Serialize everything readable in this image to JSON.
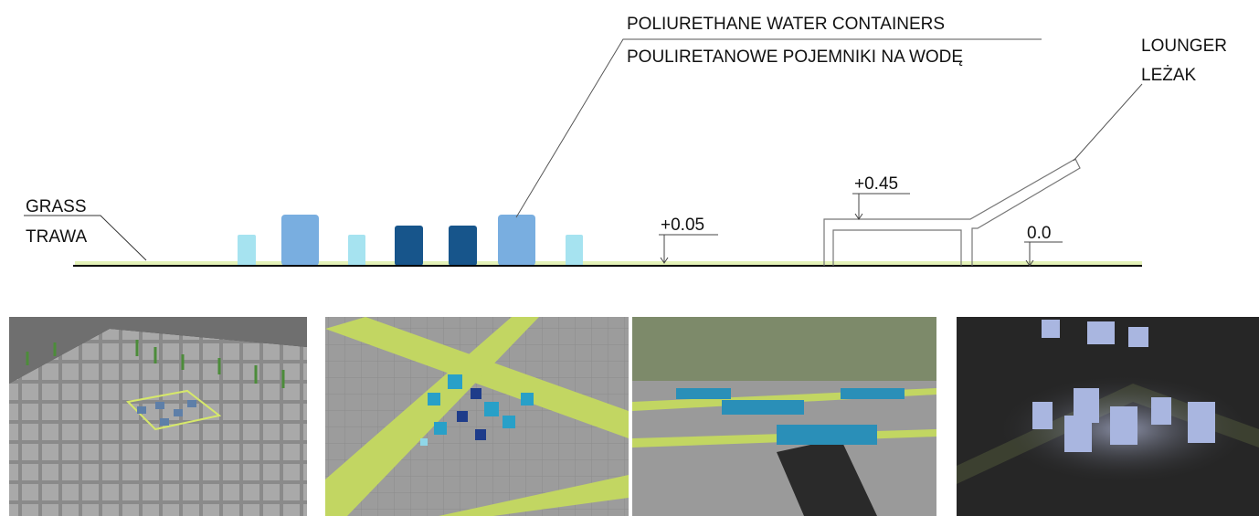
{
  "labels": {
    "containers_en": "POLIURETHANE WATER CONTAINERS",
    "containers_pl": "POULIRETANOWE POJEMNIKI NA WODĘ",
    "lounger_en": "LOUNGER",
    "lounger_pl": "LEŻAK",
    "grass_en": "GRASS",
    "grass_pl": "TRAWA"
  },
  "levels": [
    "+0.05",
    "+0.45",
    "0.0"
  ]
}
